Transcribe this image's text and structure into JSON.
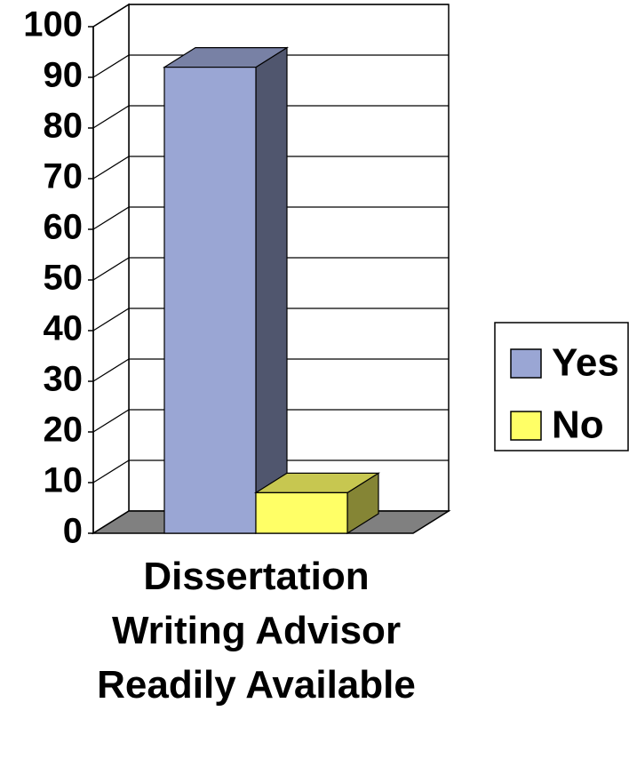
{
  "chart_data": {
    "type": "bar",
    "categories": [
      "Dissertation Writing Advisor Readily Available"
    ],
    "series": [
      {
        "name": "Yes",
        "color": "#9aa6d4",
        "values": [
          92
        ]
      },
      {
        "name": "No",
        "color": "#ffff66",
        "values": [
          8
        ]
      }
    ],
    "ylim": [
      0,
      100
    ],
    "yticks": [
      0,
      10,
      20,
      30,
      40,
      50,
      60,
      70,
      80,
      90,
      100
    ],
    "grid": true,
    "legend": "right"
  }
}
